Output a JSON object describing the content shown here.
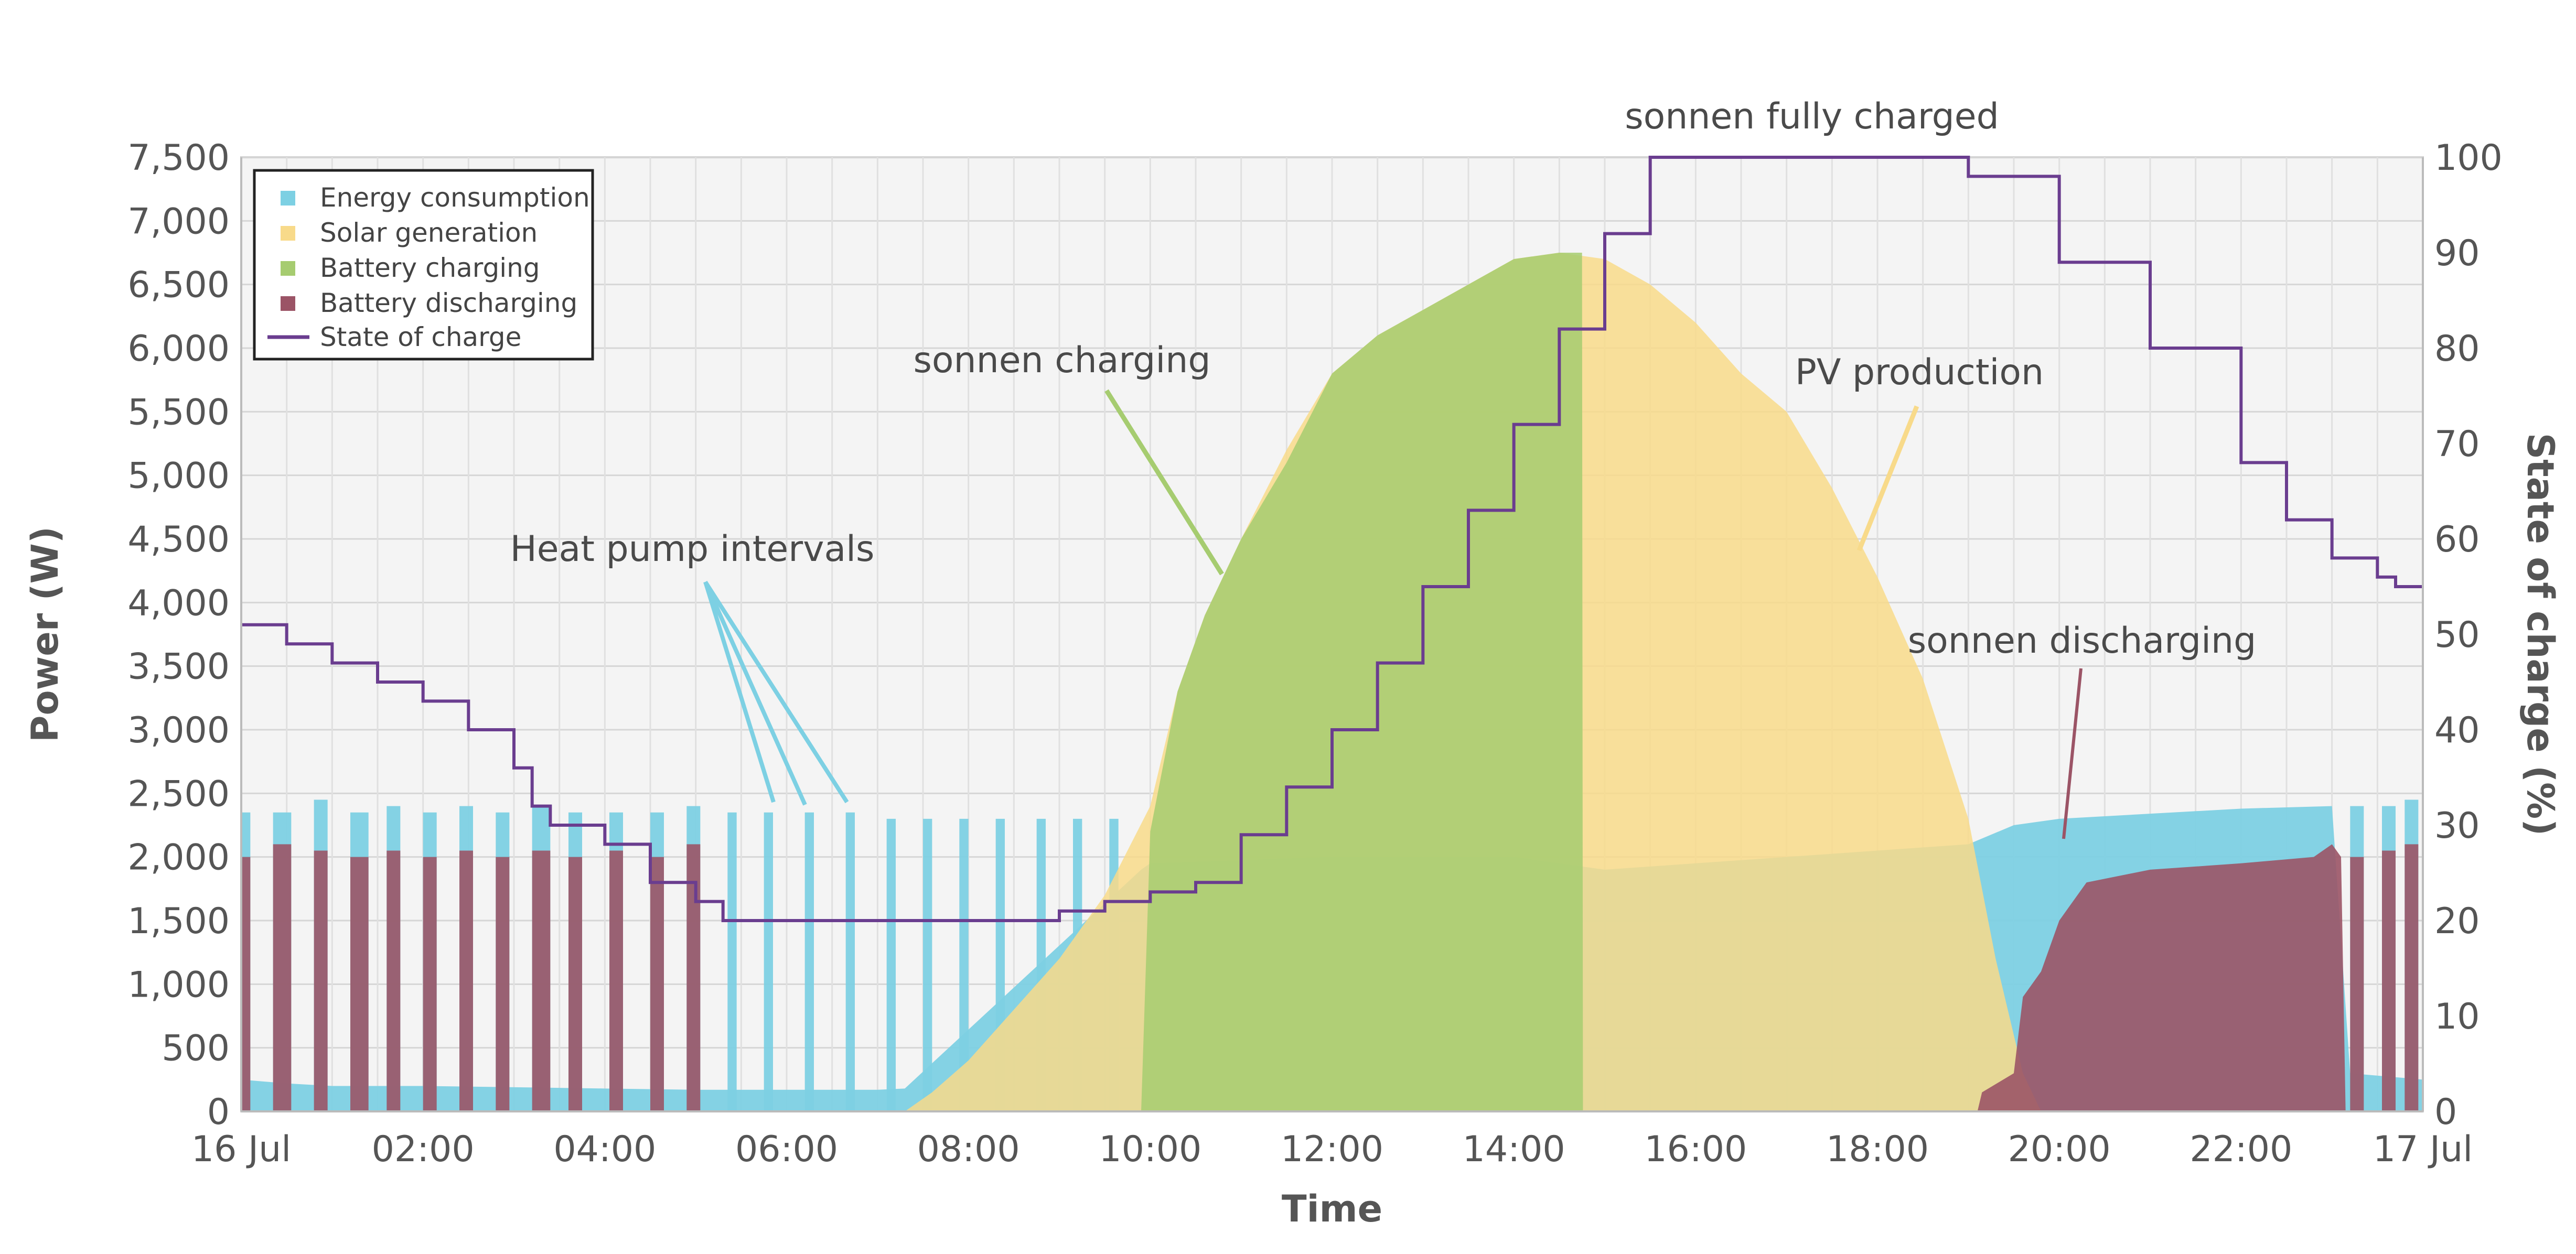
{
  "chart_data": {
    "type": "area",
    "xlabel": "Time",
    "ylabel": "Power (W)",
    "y2label": "State of charge (%)",
    "xlim": [
      0,
      24
    ],
    "ylim": [
      0,
      7500
    ],
    "y2lim": [
      0,
      100
    ],
    "x_ticks": [
      {
        "x": 0,
        "label": "16 Jul"
      },
      {
        "x": 2,
        "label": "02:00"
      },
      {
        "x": 4,
        "label": "04:00"
      },
      {
        "x": 6,
        "label": "06:00"
      },
      {
        "x": 8,
        "label": "08:00"
      },
      {
        "x": 10,
        "label": "10:00"
      },
      {
        "x": 12,
        "label": "12:00"
      },
      {
        "x": 14,
        "label": "14:00"
      },
      {
        "x": 16,
        "label": "16:00"
      },
      {
        "x": 18,
        "label": "18:00"
      },
      {
        "x": 20,
        "label": "20:00"
      },
      {
        "x": 22,
        "label": "22:00"
      },
      {
        "x": 24,
        "label": "17 Jul"
      }
    ],
    "y_ticks": [
      {
        "v": 0,
        "label": "0"
      },
      {
        "v": 500,
        "label": "500"
      },
      {
        "v": 1000,
        "label": "1,000"
      },
      {
        "v": 1500,
        "label": "1,500"
      },
      {
        "v": 2000,
        "label": "2,000"
      },
      {
        "v": 2500,
        "label": "2,500"
      },
      {
        "v": 3000,
        "label": "3,000"
      },
      {
        "v": 3500,
        "label": "3,500"
      },
      {
        "v": 4000,
        "label": "4,000"
      },
      {
        "v": 4500,
        "label": "4,500"
      },
      {
        "v": 5000,
        "label": "5,000"
      },
      {
        "v": 5500,
        "label": "5,500"
      },
      {
        "v": 6000,
        "label": "6,000"
      },
      {
        "v": 6500,
        "label": "6,500"
      },
      {
        "v": 7000,
        "label": "7,000"
      },
      {
        "v": 7500,
        "label": "7,500"
      }
    ],
    "y2_ticks": [
      {
        "v": 0,
        "label": "0"
      },
      {
        "v": 10,
        "label": "10"
      },
      {
        "v": 20,
        "label": "20"
      },
      {
        "v": 30,
        "label": "30"
      },
      {
        "v": 40,
        "label": "40"
      },
      {
        "v": 50,
        "label": "50"
      },
      {
        "v": 60,
        "label": "60"
      },
      {
        "v": 70,
        "label": "70"
      },
      {
        "v": 80,
        "label": "80"
      },
      {
        "v": 90,
        "label": "90"
      },
      {
        "v": 100,
        "label": "100"
      }
    ],
    "grid": true,
    "legend_position": "top-left",
    "legend": [
      {
        "label": "Energy consumption",
        "color": "#7dd0e3",
        "kind": "square"
      },
      {
        "label": "Solar generation",
        "color": "#f8da8a",
        "kind": "square"
      },
      {
        "label": "Battery charging",
        "color": "#a6cc70",
        "kind": "square"
      },
      {
        "label": "Battery discharging",
        "color": "#9b5466",
        "kind": "square"
      },
      {
        "label": "State of charge",
        "color": "#6a3d8f",
        "kind": "line"
      }
    ],
    "series": [
      {
        "name": "Energy consumption",
        "axis": "left",
        "color": "#7dd0e3",
        "base_points": [
          [
            0,
            250
          ],
          [
            0.5,
            220
          ],
          [
            1,
            200
          ],
          [
            2,
            200
          ],
          [
            3,
            190
          ],
          [
            4,
            180
          ],
          [
            5,
            170
          ],
          [
            6,
            170
          ],
          [
            7,
            170
          ],
          [
            7.3,
            180
          ],
          [
            9.9,
            1900
          ],
          [
            10,
            1950
          ],
          [
            12,
            2000
          ],
          [
            14,
            2000
          ],
          [
            15,
            1900
          ],
          [
            18,
            2050
          ],
          [
            19,
            2100
          ],
          [
            19.5,
            2250
          ],
          [
            20,
            2300
          ],
          [
            22,
            2380
          ],
          [
            23,
            2400
          ],
          [
            23.2,
            300
          ],
          [
            24,
            250
          ]
        ],
        "pulses": [
          {
            "start": 0.0,
            "end": 0.1,
            "value": 2350
          },
          {
            "start": 0.35,
            "end": 0.55,
            "value": 2350
          },
          {
            "start": 0.8,
            "end": 0.95,
            "value": 2450
          },
          {
            "start": 1.2,
            "end": 1.4,
            "value": 2350
          },
          {
            "start": 1.6,
            "end": 1.75,
            "value": 2400
          },
          {
            "start": 2.0,
            "end": 2.15,
            "value": 2350
          },
          {
            "start": 2.4,
            "end": 2.55,
            "value": 2400
          },
          {
            "start": 2.8,
            "end": 2.95,
            "value": 2350
          },
          {
            "start": 3.2,
            "end": 3.4,
            "value": 2400
          },
          {
            "start": 3.6,
            "end": 3.75,
            "value": 2350
          },
          {
            "start": 4.05,
            "end": 4.2,
            "value": 2350
          },
          {
            "start": 4.5,
            "end": 4.65,
            "value": 2350
          },
          {
            "start": 4.9,
            "end": 5.05,
            "value": 2400
          },
          {
            "start": 5.35,
            "end": 5.45,
            "value": 2350
          },
          {
            "start": 5.75,
            "end": 5.85,
            "value": 2350
          },
          {
            "start": 6.2,
            "end": 6.3,
            "value": 2350
          },
          {
            "start": 6.65,
            "end": 6.75,
            "value": 2350
          },
          {
            "start": 7.1,
            "end": 7.2,
            "value": 2300
          },
          {
            "start": 7.5,
            "end": 7.6,
            "value": 2300
          },
          {
            "start": 7.9,
            "end": 8.0,
            "value": 2300
          },
          {
            "start": 8.3,
            "end": 8.4,
            "value": 2300
          },
          {
            "start": 8.75,
            "end": 8.85,
            "value": 2300
          },
          {
            "start": 9.15,
            "end": 9.25,
            "value": 2300
          },
          {
            "start": 9.55,
            "end": 9.65,
            "value": 2300
          },
          {
            "start": 23.2,
            "end": 23.35,
            "value": 2400
          },
          {
            "start": 23.55,
            "end": 23.7,
            "value": 2400
          },
          {
            "start": 23.8,
            "end": 23.95,
            "value": 2450
          }
        ]
      },
      {
        "name": "Solar generation",
        "axis": "left",
        "color": "#f8da8a",
        "points": [
          [
            7.3,
            0
          ],
          [
            7.6,
            150
          ],
          [
            8,
            400
          ],
          [
            8.5,
            800
          ],
          [
            9,
            1200
          ],
          [
            9.5,
            1700
          ],
          [
            10,
            2400
          ],
          [
            10.3,
            3300
          ],
          [
            10.6,
            3900
          ],
          [
            11,
            4500
          ],
          [
            11.5,
            5200
          ],
          [
            12,
            5800
          ],
          [
            12.5,
            6100
          ],
          [
            13,
            6300
          ],
          [
            13.5,
            6500
          ],
          [
            14,
            6700
          ],
          [
            14.5,
            6750
          ],
          [
            15,
            6700
          ],
          [
            15.5,
            6500
          ],
          [
            16,
            6200
          ],
          [
            16.5,
            5800
          ],
          [
            17,
            5500
          ],
          [
            17.5,
            4900
          ],
          [
            18,
            4200
          ],
          [
            18.5,
            3400
          ],
          [
            19,
            2300
          ],
          [
            19.3,
            1200
          ],
          [
            19.6,
            300
          ],
          [
            19.8,
            0
          ]
        ]
      },
      {
        "name": "Battery charging",
        "axis": "left",
        "color": "#a6cc70",
        "points": [
          [
            9.9,
            0
          ],
          [
            10,
            2200
          ],
          [
            10.3,
            3300
          ],
          [
            10.6,
            3900
          ],
          [
            11,
            4500
          ],
          [
            11.5,
            5100
          ],
          [
            12,
            5800
          ],
          [
            12.5,
            6100
          ],
          [
            13,
            6300
          ],
          [
            13.5,
            6500
          ],
          [
            14,
            6700
          ],
          [
            14.5,
            6750
          ],
          [
            14.75,
            6750
          ],
          [
            14.76,
            0
          ]
        ]
      },
      {
        "name": "Battery discharging",
        "axis": "left",
        "color": "#9b5466",
        "pulses": [
          {
            "start": 0.0,
            "end": 0.1,
            "value": 2000
          },
          {
            "start": 0.35,
            "end": 0.55,
            "value": 2100
          },
          {
            "start": 0.8,
            "end": 0.95,
            "value": 2050
          },
          {
            "start": 1.2,
            "end": 1.4,
            "value": 2000
          },
          {
            "start": 1.6,
            "end": 1.75,
            "value": 2050
          },
          {
            "start": 2.0,
            "end": 2.15,
            "value": 2000
          },
          {
            "start": 2.4,
            "end": 2.55,
            "value": 2050
          },
          {
            "start": 2.8,
            "end": 2.95,
            "value": 2000
          },
          {
            "start": 3.2,
            "end": 3.4,
            "value": 2050
          },
          {
            "start": 3.6,
            "end": 3.75,
            "value": 2000
          },
          {
            "start": 4.05,
            "end": 4.2,
            "value": 2050
          },
          {
            "start": 4.5,
            "end": 4.65,
            "value": 2000
          },
          {
            "start": 4.9,
            "end": 5.05,
            "value": 2100
          },
          {
            "start": 23.2,
            "end": 23.35,
            "value": 2000
          },
          {
            "start": 23.55,
            "end": 23.7,
            "value": 2050
          },
          {
            "start": 23.8,
            "end": 23.95,
            "value": 2100
          }
        ],
        "points": [
          [
            19.1,
            0
          ],
          [
            19.15,
            150
          ],
          [
            19.5,
            300
          ],
          [
            19.6,
            900
          ],
          [
            19.8,
            1100
          ],
          [
            20,
            1500
          ],
          [
            20.3,
            1800
          ],
          [
            21,
            1900
          ],
          [
            22,
            1950
          ],
          [
            22.8,
            2000
          ],
          [
            23,
            2100
          ],
          [
            23.1,
            2000
          ],
          [
            23.15,
            0
          ]
        ]
      },
      {
        "name": "State of charge",
        "axis": "right",
        "color": "#6a3d8f",
        "points": [
          [
            0,
            51
          ],
          [
            0.5,
            49
          ],
          [
            1,
            47
          ],
          [
            1.5,
            45
          ],
          [
            2,
            43
          ],
          [
            2.5,
            40
          ],
          [
            3,
            36
          ],
          [
            3.2,
            32
          ],
          [
            3.4,
            30
          ],
          [
            4,
            28
          ],
          [
            4.5,
            24
          ],
          [
            5,
            22
          ],
          [
            5.3,
            20
          ],
          [
            7,
            20
          ],
          [
            8,
            20
          ],
          [
            8.5,
            20
          ],
          [
            9,
            21
          ],
          [
            9.5,
            22
          ],
          [
            10,
            23
          ],
          [
            10.5,
            24
          ],
          [
            11,
            29
          ],
          [
            11.5,
            34
          ],
          [
            12,
            40
          ],
          [
            12.5,
            47
          ],
          [
            13,
            55
          ],
          [
            13.5,
            63
          ],
          [
            14,
            72
          ],
          [
            14.5,
            82
          ],
          [
            15,
            92
          ],
          [
            15.5,
            100
          ],
          [
            18.5,
            100
          ],
          [
            19,
            98
          ],
          [
            20,
            89
          ],
          [
            21,
            80
          ],
          [
            22,
            68
          ],
          [
            22.5,
            62
          ],
          [
            23,
            58
          ],
          [
            23.5,
            56
          ],
          [
            23.7,
            55
          ],
          [
            24,
            55
          ]
        ]
      }
    ],
    "annotations": [
      {
        "text": "sonnen fully charged"
      },
      {
        "text": "sonnen charging"
      },
      {
        "text": "PV production"
      },
      {
        "text": "Heat pump intervals"
      },
      {
        "text": "sonnen discharging"
      }
    ]
  }
}
